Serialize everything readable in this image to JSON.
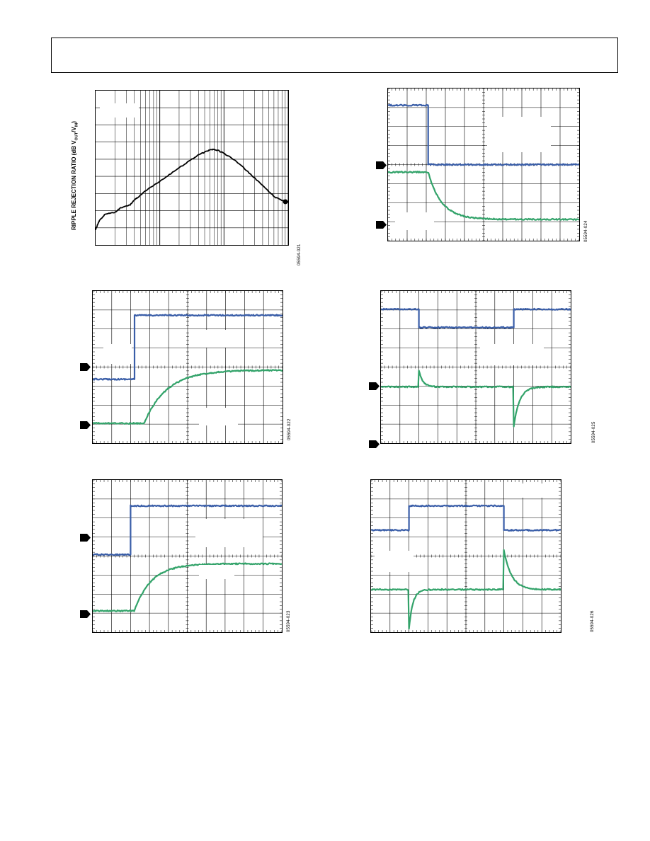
{
  "page": {
    "header_text": ""
  },
  "figures": {
    "fig21": {
      "id_label": "05594-021",
      "ylabel_main": "RIPPLE REJECTION RATIO (dB V",
      "ylabel_sub1": "OUT",
      "ylabel_mid": "/V",
      "ylabel_sub2": "IN",
      "ylabel_end": ")"
    },
    "fig22": {
      "id_label": "05594-022"
    },
    "fig23": {
      "id_label": "05594-023"
    },
    "fig24": {
      "id_label": "05594-024"
    },
    "fig25": {
      "id_label": "05594-025"
    },
    "fig26": {
      "id_label": "05594-026"
    }
  },
  "colors": {
    "blue_trace": "#3a5ea8",
    "green_trace": "#33a36a",
    "black_trace": "#000000",
    "grid": "#000000"
  },
  "chart_data": [
    {
      "id": "fig21",
      "type": "line",
      "x_scale": "log",
      "xlim_decades": 3,
      "ylabel": "RIPPLE REJECTION RATIO (dB VOUT/VIN)",
      "grid": true,
      "series": [
        {
          "values_norm": [
            [
              0.0,
              0.1
            ],
            [
              0.02,
              0.16
            ],
            [
              0.05,
              0.2
            ],
            [
              0.1,
              0.21
            ],
            [
              0.13,
              0.24
            ],
            [
              0.18,
              0.26
            ],
            [
              0.2,
              0.29
            ],
            [
              0.22,
              0.31
            ],
            [
              0.27,
              0.36
            ],
            [
              0.33,
              0.41
            ],
            [
              0.4,
              0.47
            ],
            [
              0.47,
              0.53
            ],
            [
              0.53,
              0.58
            ],
            [
              0.58,
              0.61
            ],
            [
              0.61,
              0.62
            ],
            [
              0.64,
              0.61
            ],
            [
              0.7,
              0.57
            ],
            [
              0.76,
              0.51
            ],
            [
              0.82,
              0.44
            ],
            [
              0.88,
              0.37
            ],
            [
              0.93,
              0.31
            ],
            [
              0.97,
              0.29
            ],
            [
              1.0,
              0.28
            ]
          ]
        }
      ]
    },
    {
      "id": "fig22",
      "type": "line",
      "grid": true,
      "divisions": [
        10,
        8
      ],
      "series": [
        {
          "color_key": "blue_trace",
          "kind": "step_up",
          "t_step": 0.22,
          "y_low": 0.58,
          "y_high": 0.16
        },
        {
          "color_key": "green_trace",
          "kind": "rc_rise",
          "t_step": 0.27,
          "y_low": 0.87,
          "y_high": 0.52,
          "tau": 0.12
        }
      ]
    },
    {
      "id": "fig23",
      "type": "line",
      "grid": true,
      "divisions": [
        10,
        8
      ],
      "series": [
        {
          "color_key": "blue_trace",
          "kind": "step_up",
          "t_step": 0.2,
          "y_low": 0.49,
          "y_high": 0.17
        },
        {
          "color_key": "green_trace",
          "kind": "rc_rise",
          "t_step": 0.22,
          "y_low": 0.86,
          "y_high": 0.55,
          "tau": 0.09
        }
      ]
    },
    {
      "id": "fig24",
      "type": "line",
      "grid": true,
      "divisions": [
        10,
        8
      ],
      "series": [
        {
          "color_key": "blue_trace",
          "kind": "step_down",
          "t_step": 0.21,
          "y_high": 0.11,
          "y_low": 0.5
        },
        {
          "color_key": "green_trace",
          "kind": "rc_fall",
          "t_step": 0.21,
          "y_high": 0.55,
          "y_low": 0.86,
          "tau": 0.07
        }
      ]
    },
    {
      "id": "fig25",
      "type": "line",
      "grid": true,
      "divisions": [
        10,
        8
      ],
      "series": [
        {
          "color_key": "blue_trace",
          "kind": "pulse_low",
          "t1": 0.2,
          "t2": 0.7,
          "y_high": 0.12,
          "y_low": 0.24
        },
        {
          "color_key": "green_trace",
          "kind": "spikes",
          "baseline": 0.63,
          "events": [
            [
              0.2,
              -0.11,
              0.02
            ],
            [
              0.7,
              0.26,
              0.03
            ]
          ]
        }
      ]
    },
    {
      "id": "fig26",
      "type": "line",
      "grid": true,
      "divisions": [
        10,
        8
      ],
      "series": [
        {
          "color_key": "blue_trace",
          "kind": "pulse_high",
          "t1": 0.2,
          "t2": 0.7,
          "y_low": 0.33,
          "y_high": 0.17
        },
        {
          "color_key": "green_trace",
          "kind": "spikes",
          "baseline": 0.72,
          "events": [
            [
              0.2,
              0.26,
              0.02
            ],
            [
              0.7,
              -0.26,
              0.04
            ]
          ]
        }
      ]
    }
  ]
}
